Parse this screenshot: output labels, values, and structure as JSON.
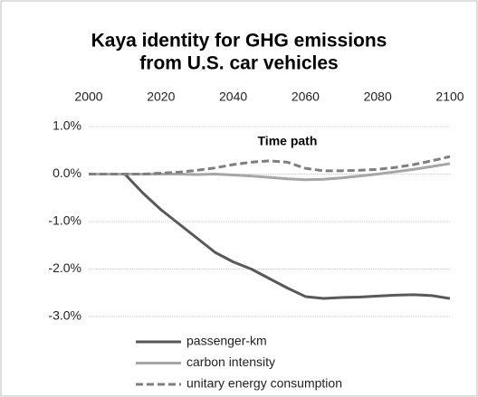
{
  "chart_data": {
    "type": "line",
    "title": [
      "Kaya identity for GHG emissions",
      "from U.S. car vehicles"
    ],
    "annotation": "Time path",
    "x": [
      2000,
      2005,
      2010,
      2015,
      2020,
      2025,
      2030,
      2035,
      2040,
      2045,
      2050,
      2055,
      2060,
      2065,
      2070,
      2075,
      2080,
      2085,
      2090,
      2095,
      2100
    ],
    "series": [
      {
        "name": "passenger-km",
        "color": "#595959",
        "dashed": false,
        "values": [
          0,
          0,
          0,
          -0.4,
          -0.75,
          -1.05,
          -1.35,
          -1.65,
          -1.85,
          -2.0,
          -2.2,
          -2.4,
          -2.58,
          -2.62,
          -2.6,
          -2.59,
          -2.57,
          -2.55,
          -2.54,
          -2.56,
          -2.62
        ]
      },
      {
        "name": "carbon intensity",
        "color": "#a6a6a6",
        "dashed": false,
        "values": [
          0,
          0,
          0,
          0,
          0,
          0,
          -0.01,
          0,
          -0.02,
          -0.04,
          -0.07,
          -0.1,
          -0.12,
          -0.11,
          -0.08,
          -0.04,
          0,
          0.05,
          0.1,
          0.16,
          0.22
        ]
      },
      {
        "name": "unitary energy consumption",
        "color": "#7f7f7f",
        "dashed": true,
        "values": [
          0,
          0,
          0,
          0,
          0.02,
          0.04,
          0.08,
          0.13,
          0.2,
          0.25,
          0.28,
          0.25,
          0.12,
          0.07,
          0.07,
          0.08,
          0.1,
          0.14,
          0.2,
          0.28,
          0.37
        ]
      }
    ],
    "xlim": [
      2000,
      2100
    ],
    "xticks": [
      2000,
      2020,
      2040,
      2060,
      2080,
      2100
    ],
    "ylim": [
      -3,
      1
    ],
    "yticks": [
      {
        "value": 1,
        "label": "1.0%"
      },
      {
        "value": 0,
        "label": "0.0%"
      },
      {
        "value": -1,
        "label": "-1.0%"
      },
      {
        "value": -2,
        "label": "-2.0%"
      },
      {
        "value": -3,
        "label": "-3.0%"
      }
    ],
    "grid": true
  }
}
